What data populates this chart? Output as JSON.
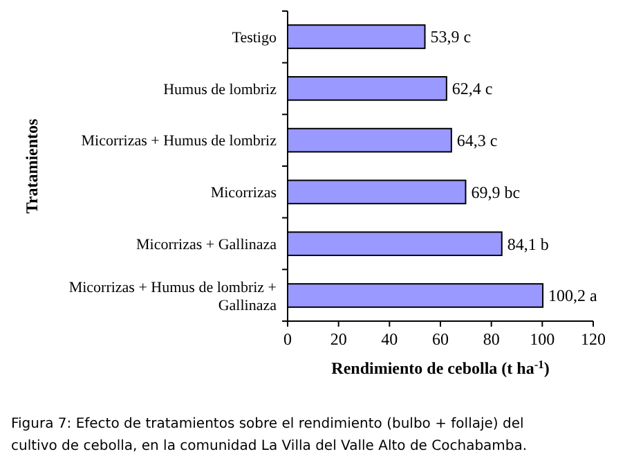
{
  "chart_data": {
    "type": "bar",
    "orientation": "horizontal",
    "categories": [
      "Testigo",
      "Humus de lombriz",
      "Micorrizas + Humus de lombriz",
      "Micorrizas",
      "Micorrizas + Gallinaza",
      "Micorrizas + Humus de lombriz + Gallinaza"
    ],
    "values": [
      53.9,
      62.4,
      64.3,
      69.9,
      84.1,
      100.2
    ],
    "value_labels": [
      "53,9 c",
      "62,4 c",
      "64,3 c",
      "69,9 bc",
      "84,1 b",
      "100,2 a"
    ],
    "color": "#9999ff",
    "xlim": [
      0,
      120
    ],
    "xticks": [
      0,
      20,
      40,
      60,
      80,
      100,
      120
    ],
    "xlabel": "Rendimiento de cebolla (t ha$^{-1}$)",
    "ylabel": "Tratamientos",
    "grid": false,
    "annotations": [
      "Figura 7: Efecto de tratamientos sobre el rendimiento (bulbo + follaje) del cultivo de cebolla, en la comunidad La Villa del Valle Alto de Cochabamba."
    ]
  }
}
